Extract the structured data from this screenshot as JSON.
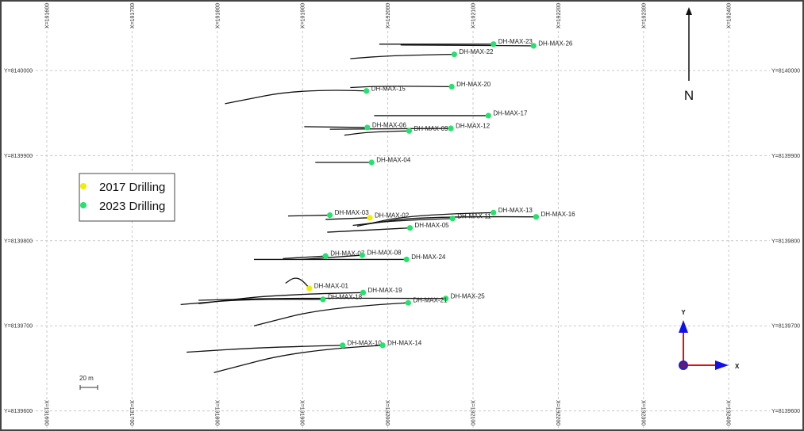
{
  "map": {
    "x_grid": [
      191600,
      191700,
      191800,
      191900,
      192000,
      192100,
      192200,
      192300,
      192400
    ],
    "y_grid": [
      8140000,
      8139900,
      8139800,
      8139700,
      8139600
    ],
    "x_prefix": "X=",
    "y_prefix": "Y=",
    "x_labels": [
      "X=191600",
      "X=191700",
      "X=191800",
      "X=191900",
      "X=192000",
      "X=192100",
      "X=192200",
      "X=192300",
      "X=192400"
    ],
    "y_labels": [
      "Y=8140000",
      "Y=8139900",
      "Y=8139800",
      "Y=8139700",
      "Y=8139600"
    ],
    "grid": true
  },
  "north_label": "N",
  "axes_triad": {
    "x_label": "X",
    "y_label": "Y"
  },
  "scale_bar": {
    "label": "20 m",
    "length_m": 20
  },
  "legend": {
    "placement": "left",
    "items": [
      {
        "label": "2017 Drilling",
        "color": "#f2ee00"
      },
      {
        "label": "2023 Drilling",
        "color": "#22e36b"
      }
    ]
  },
  "colors": {
    "y2017": "#f2ee00",
    "y2023": "#22e36b",
    "trace": "#111111",
    "grid": "#c8c8c8"
  },
  "holes": [
    {
      "name": "DH-MAX-23",
      "year": 2023,
      "trace": [
        [
          192124,
          8140031
        ],
        [
          191990,
          8140031
        ]
      ]
    },
    {
      "name": "DH-MAX-26",
      "year": 2023,
      "trace": [
        [
          192171,
          8140029
        ],
        [
          192015,
          8140030
        ]
      ]
    },
    {
      "name": "DH-MAX-22",
      "year": 2023,
      "trace": [
        [
          192078,
          8140019
        ],
        [
          192010,
          8140018
        ],
        [
          191956,
          8140014
        ]
      ]
    },
    {
      "name": "DH-MAX-20",
      "year": 2023,
      "trace": [
        [
          192075,
          8139981
        ],
        [
          192000,
          8139982
        ],
        [
          191956,
          8139980
        ]
      ]
    },
    {
      "name": "DH-MAX-15",
      "year": 2023,
      "trace": [
        [
          191975,
          8139976
        ],
        [
          191900,
          8139979
        ],
        [
          191809,
          8139961
        ]
      ]
    },
    {
      "name": "DH-MAX-17",
      "year": 2023,
      "trace": [
        [
          192118,
          8139947
        ],
        [
          191984,
          8139947
        ]
      ]
    },
    {
      "name": "DH-MAX-06",
      "year": 2023,
      "trace": [
        [
          191976,
          8139933
        ],
        [
          191902,
          8139934
        ]
      ]
    },
    {
      "name": "DH-MAX-09",
      "year": 2023,
      "trace": [
        [
          192025,
          8139929
        ],
        [
          191980,
          8139928
        ],
        [
          191949,
          8139924
        ]
      ]
    },
    {
      "name": "DH-MAX-12",
      "year": 2023,
      "trace": [
        [
          192074,
          8139932
        ],
        [
          191932,
          8139931
        ]
      ]
    },
    {
      "name": "DH-MAX-04",
      "year": 2023,
      "trace": [
        [
          191981,
          8139892
        ],
        [
          191915,
          8139892
        ]
      ]
    },
    {
      "name": "DH-MAX-03",
      "year": 2023,
      "trace": [
        [
          191932,
          8139830
        ],
        [
          191883,
          8139829
        ]
      ]
    },
    {
      "name": "DH-MAX-02",
      "year": 2017,
      "trace": [
        [
          191979,
          8139827
        ],
        [
          191927,
          8139825
        ]
      ]
    },
    {
      "name": "DH-MAX-13",
      "year": 2023,
      "trace": [
        [
          192124,
          8139833
        ],
        [
          192030,
          8139831
        ],
        [
          191964,
          8139817
        ]
      ]
    },
    {
      "name": "DH-MAX-16",
      "year": 2023,
      "trace": [
        [
          192174,
          8139828
        ],
        [
          192040,
          8139829
        ],
        [
          191973,
          8139819
        ]
      ]
    },
    {
      "name": "DH-MAX-11",
      "year": 2023,
      "trace": [
        [
          192076,
          8139826
        ],
        [
          192010,
          8139824
        ],
        [
          191959,
          8139818
        ]
      ]
    },
    {
      "name": "DH-MAX-05",
      "year": 2023,
      "trace": [
        [
          192026,
          8139815
        ],
        [
          191929,
          8139810
        ]
      ]
    },
    {
      "name": "DH-MAX-07",
      "year": 2023,
      "trace": [
        [
          191927,
          8139782
        ],
        [
          191877,
          8139779
        ]
      ]
    },
    {
      "name": "DH-MAX-08",
      "year": 2023,
      "trace": [
        [
          191970,
          8139783
        ],
        [
          191899,
          8139778
        ]
      ]
    },
    {
      "name": "DH-MAX-24",
      "year": 2023,
      "trace": [
        [
          192022,
          8139778
        ],
        [
          191843,
          8139778
        ]
      ]
    },
    {
      "name": "DH-MAX-01",
      "year": 2017,
      "trace": [
        [
          191908,
          8139744
        ],
        [
          191900,
          8139754
        ],
        [
          191890,
          8139757
        ],
        [
          191880,
          8139750
        ]
      ]
    },
    {
      "name": "DH-MAX-19",
      "year": 2023,
      "trace": [
        [
          191971,
          8139739
        ],
        [
          191870,
          8139737
        ],
        [
          191778,
          8139726
        ]
      ]
    },
    {
      "name": "DH-MAX-18",
      "year": 2023,
      "trace": [
        [
          191924,
          8139731
        ],
        [
          191840,
          8139732
        ],
        [
          191757,
          8139725
        ]
      ]
    },
    {
      "name": "DH-MAX-25",
      "year": 2023,
      "trace": [
        [
          192068,
          8139732
        ],
        [
          191900,
          8139733
        ],
        [
          191778,
          8139730
        ]
      ]
    },
    {
      "name": "DH-MAX-21",
      "year": 2023,
      "trace": [
        [
          192024,
          8139727
        ],
        [
          191930,
          8139722
        ],
        [
          191843,
          8139700
        ]
      ]
    },
    {
      "name": "DH-MAX-10",
      "year": 2023,
      "trace": [
        [
          191947,
          8139677
        ],
        [
          191860,
          8139675
        ],
        [
          191764,
          8139669
        ]
      ]
    },
    {
      "name": "DH-MAX-14",
      "year": 2023,
      "trace": [
        [
          191994,
          8139677
        ],
        [
          191900,
          8139672
        ],
        [
          191796,
          8139645
        ]
      ]
    }
  ]
}
